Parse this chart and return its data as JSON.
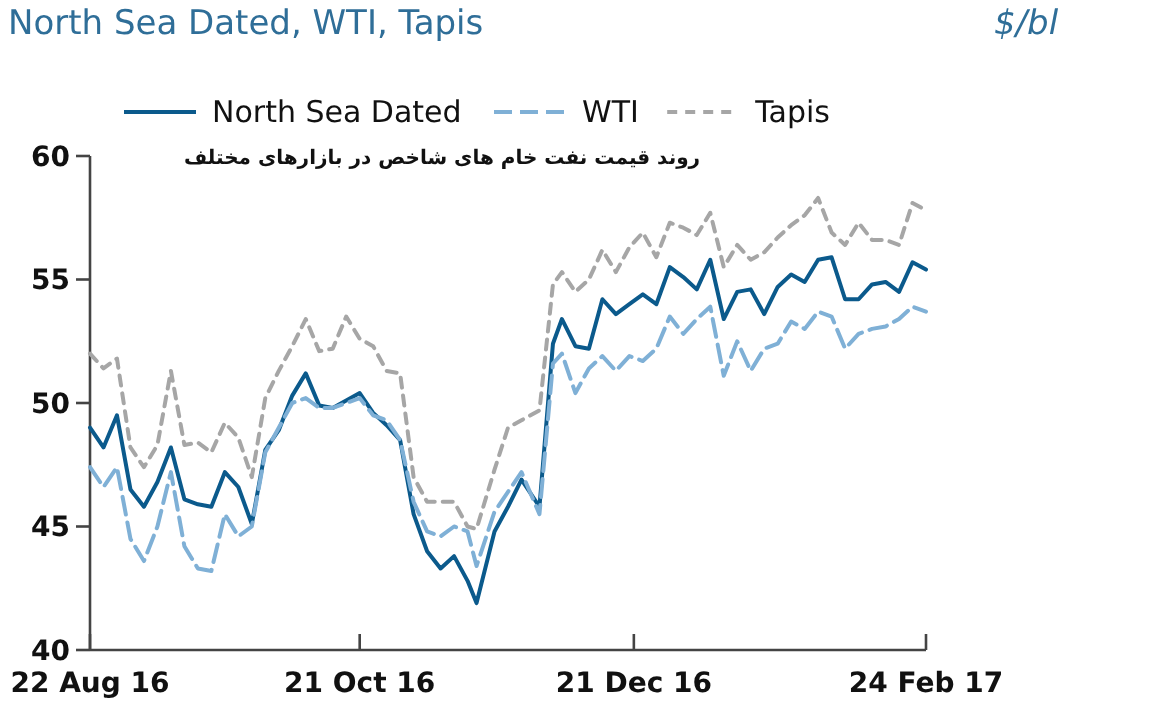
{
  "chart_data": {
    "type": "line",
    "title": "North Sea Dated, WTI, Tapis",
    "ylabel": "$/bl",
    "annotations": [
      "روند قیمت نفت خام های شاخص در بازارهای مختلف"
    ],
    "x": [
      "2016-08-22",
      "2016-08-25",
      "2016-08-28",
      "2016-08-31",
      "2016-09-03",
      "2016-09-06",
      "2016-09-09",
      "2016-09-12",
      "2016-09-15",
      "2016-09-18",
      "2016-09-21",
      "2016-09-24",
      "2016-09-27",
      "2016-09-30",
      "2016-10-03",
      "2016-10-06",
      "2016-10-09",
      "2016-10-12",
      "2016-10-15",
      "2016-10-18",
      "2016-10-21",
      "2016-10-24",
      "2016-10-27",
      "2016-10-30",
      "2016-11-02",
      "2016-11-05",
      "2016-11-08",
      "2016-11-11",
      "2016-11-14",
      "2016-11-16",
      "2016-11-20",
      "2016-11-23",
      "2016-11-26",
      "2016-11-30",
      "2016-12-03",
      "2016-12-05",
      "2016-12-08",
      "2016-12-11",
      "2016-12-14",
      "2016-12-17",
      "2016-12-20",
      "2016-12-23",
      "2016-12-26",
      "2016-12-29",
      "2017-01-01",
      "2017-01-04",
      "2017-01-07",
      "2017-01-10",
      "2017-01-13",
      "2017-01-16",
      "2017-01-19",
      "2017-01-22",
      "2017-01-25",
      "2017-01-28",
      "2017-01-31",
      "2017-02-03",
      "2017-02-06",
      "2017-02-09",
      "2017-02-12",
      "2017-02-15",
      "2017-02-18",
      "2017-02-21",
      "2017-02-24"
    ],
    "series": [
      {
        "name": "North Sea Dated",
        "color": "#0b5a8c",
        "line_style": "solid",
        "values": [
          49.0,
          48.2,
          49.5,
          46.5,
          45.8,
          46.8,
          48.2,
          46.1,
          45.9,
          45.8,
          47.2,
          46.6,
          45.1,
          48.1,
          48.9,
          50.3,
          51.2,
          49.9,
          49.8,
          50.1,
          50.4,
          49.6,
          49.1,
          48.5,
          45.5,
          44.0,
          43.3,
          43.8,
          42.8,
          41.9,
          44.8,
          45.8,
          46.9,
          45.8,
          52.4,
          53.4,
          52.3,
          52.2,
          54.2,
          53.6,
          54.0,
          54.4,
          54.0,
          55.5,
          55.1,
          54.6,
          55.8,
          53.4,
          54.5,
          54.6,
          53.6,
          54.7,
          55.2,
          54.9,
          55.8,
          55.9,
          54.2,
          54.2,
          54.8,
          54.9,
          54.5,
          55.7,
          55.4
        ]
      },
      {
        "name": "WTI",
        "color": "#7fb0d6",
        "line_style": "dashed",
        "values": [
          47.4,
          46.6,
          47.4,
          44.5,
          43.6,
          45.0,
          47.2,
          44.2,
          43.3,
          43.2,
          45.5,
          44.6,
          45.0,
          48.0,
          49.0,
          50.0,
          50.2,
          49.8,
          49.8,
          50.0,
          50.2,
          49.5,
          49.3,
          48.5,
          46.0,
          44.8,
          44.6,
          45.0,
          44.8,
          43.4,
          45.6,
          46.4,
          47.2,
          45.5,
          51.6,
          52.0,
          50.4,
          51.4,
          51.9,
          51.3,
          51.9,
          51.7,
          52.2,
          53.5,
          52.8,
          53.4,
          53.9,
          51.1,
          52.5,
          51.3,
          52.2,
          52.4,
          53.3,
          53.0,
          53.7,
          53.5,
          52.2,
          52.8,
          53.0,
          53.1,
          53.4,
          53.9,
          53.7
        ]
      },
      {
        "name": "Tapis",
        "color": "#a6a6a6",
        "line_style": "dotted",
        "values": [
          52.0,
          51.4,
          51.8,
          48.2,
          47.4,
          48.3,
          51.3,
          48.3,
          48.4,
          48.0,
          49.2,
          48.6,
          47.0,
          50.2,
          51.3,
          52.3,
          53.4,
          52.1,
          52.2,
          53.5,
          52.6,
          52.3,
          51.3,
          51.2,
          47.0,
          46.0,
          46.0,
          46.0,
          45.0,
          44.9,
          47.3,
          49.0,
          49.3,
          49.7,
          54.8,
          55.3,
          54.5,
          55.0,
          56.2,
          55.3,
          56.3,
          56.9,
          55.9,
          57.3,
          57.1,
          56.8,
          57.7,
          55.5,
          56.4,
          55.8,
          56.1,
          56.7,
          57.2,
          57.6,
          58.3,
          56.9,
          56.4,
          57.3,
          56.6,
          56.6,
          56.4,
          58.1,
          57.8
        ]
      }
    ],
    "xlim": [
      "2016-08-22",
      "2017-02-24"
    ],
    "xticks": [
      {
        "value": "2016-08-22",
        "label": "22 Aug 16"
      },
      {
        "value": "2016-10-21",
        "label": "21 Oct 16"
      },
      {
        "value": "2016-12-21",
        "label": "21 Dec 16"
      },
      {
        "value": "2017-02-24",
        "label": "24 Feb 17"
      }
    ],
    "ylim": [
      40,
      60
    ],
    "yticks": [
      40,
      45,
      50,
      55,
      60
    ],
    "grid": false,
    "legend": "top",
    "marker": "none"
  }
}
